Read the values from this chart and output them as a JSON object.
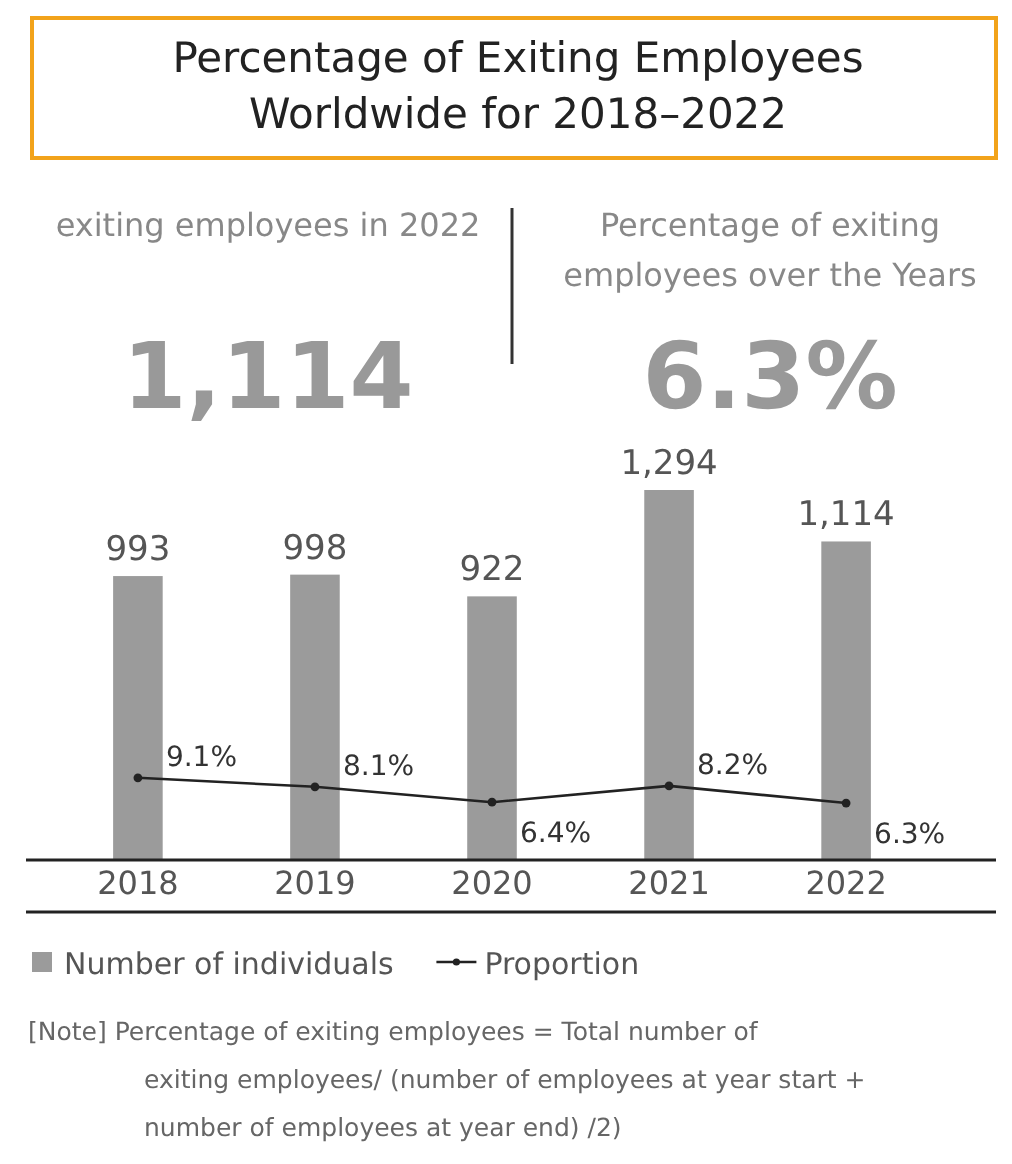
{
  "chart_data": {
    "type": "bar",
    "title": "Percentage of Exiting Employees Worldwide for 2018–2022",
    "categories": [
      "2018",
      "2019",
      "2020",
      "2021",
      "2022"
    ],
    "series": [
      {
        "name": "Number of individuals",
        "color": "#9b9b9b",
        "values": [
          993,
          998,
          922,
          1294,
          1114
        ],
        "value_labels": [
          "993",
          "998",
          "922",
          "1,294",
          "1,114"
        ]
      },
      {
        "name": "Proportion",
        "type": "line",
        "axis": "y2",
        "color": "#222222",
        "marker": "circle",
        "values": [
          9.1,
          8.1,
          6.4,
          8.2,
          6.3
        ],
        "value_labels": [
          "9.1%",
          "8.1%",
          "6.4%",
          "8.2%",
          "6.3%"
        ]
      }
    ],
    "legend": "bottom",
    "annotations": [
      "exiting employees in 2022",
      "1,114",
      "Percentage of exiting employees over the Years",
      "6.3%",
      "[Note] Percentage of exiting employees = Total number of exiting employees/ (number of employees at year start + number of employees at year end) /2)"
    ]
  }
}
